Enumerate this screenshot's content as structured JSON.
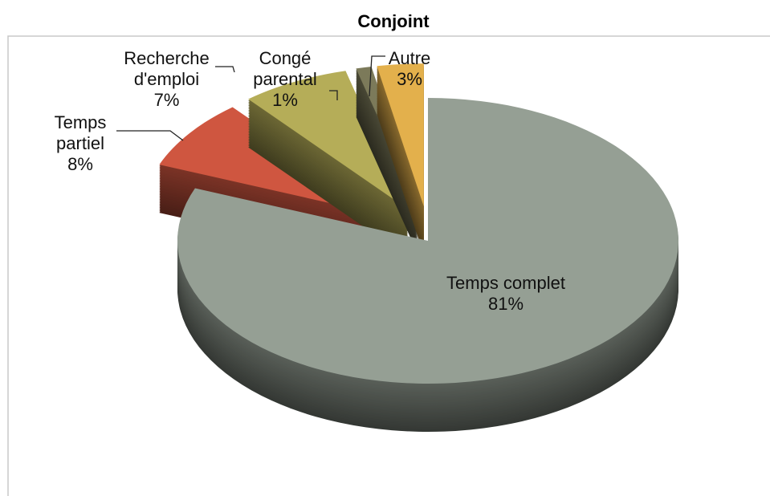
{
  "chart_data": {
    "type": "pie",
    "title": "Conjoint",
    "categories": [
      "Temps complet",
      "Temps partiel",
      "Recherche d'emploi",
      "Congé parental",
      "Autre"
    ],
    "values": [
      81,
      8,
      7,
      1,
      3
    ],
    "value_labels": [
      "81%",
      "8%",
      "7%",
      "1%",
      "3%"
    ],
    "colors": [
      "#959f94",
      "#cf5640",
      "#b5ad58",
      "#7c7a5a",
      "#e3b04c"
    ]
  }
}
